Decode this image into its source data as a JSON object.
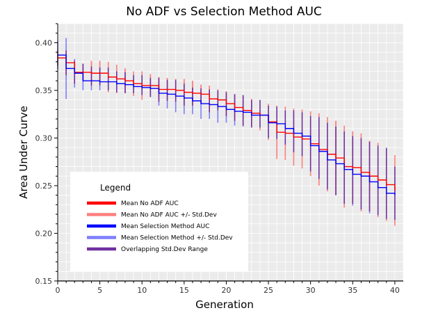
{
  "chart_data": {
    "type": "line",
    "title": "No ADF vs Selection Method AUC",
    "xlabel": "Generation",
    "ylabel": "Area Under Curve",
    "xlim": [
      0,
      41
    ],
    "ylim": [
      0.15,
      0.42
    ],
    "xticks": [
      0,
      5,
      10,
      15,
      20,
      25,
      30,
      35,
      40
    ],
    "yticks": [
      0.15,
      0.2,
      0.25,
      0.3,
      0.35,
      0.4
    ],
    "ytick_labels": [
      "0.15",
      "0.20",
      "0.25",
      "0.30",
      "0.35",
      "0.40"
    ],
    "grid": true,
    "background": "#ebebeb",
    "line_style": "step",
    "x": [
      0,
      1,
      2,
      3,
      4,
      5,
      6,
      7,
      8,
      9,
      10,
      11,
      12,
      13,
      14,
      15,
      16,
      17,
      18,
      19,
      20,
      21,
      22,
      23,
      24,
      25,
      26,
      27,
      28,
      29,
      30,
      31,
      32,
      33,
      34,
      35,
      36,
      37,
      38,
      39,
      40
    ],
    "series": [
      {
        "name": "Mean No ADF AUC",
        "color": "#ff0000",
        "values": [
          0.384,
          0.379,
          0.369,
          0.369,
          0.368,
          0.368,
          0.364,
          0.362,
          0.36,
          0.357,
          0.355,
          0.355,
          0.351,
          0.351,
          0.35,
          0.348,
          0.347,
          0.346,
          0.341,
          0.34,
          0.336,
          0.332,
          0.329,
          0.326,
          0.324,
          0.317,
          0.306,
          0.305,
          0.301,
          0.299,
          0.294,
          0.288,
          0.283,
          0.279,
          0.27,
          0.269,
          0.264,
          0.26,
          0.256,
          0.251,
          0.245
        ]
      },
      {
        "name": "Mean No ADF AUC +/- Std.Dev",
        "color": "#ff7f7f",
        "upper": [
          0.392,
          0.392,
          0.381,
          0.378,
          0.381,
          0.381,
          0.38,
          0.377,
          0.373,
          0.37,
          0.37,
          0.367,
          0.364,
          0.363,
          0.362,
          0.362,
          0.36,
          0.356,
          0.355,
          0.351,
          0.349,
          0.346,
          0.345,
          0.341,
          0.34,
          0.336,
          0.334,
          0.333,
          0.331,
          0.33,
          0.328,
          0.326,
          0.322,
          0.318,
          0.313,
          0.307,
          0.305,
          0.297,
          0.295,
          0.289,
          0.282
        ],
        "lower": [
          0.376,
          0.366,
          0.357,
          0.36,
          0.355,
          0.355,
          0.348,
          0.347,
          0.347,
          0.344,
          0.34,
          0.343,
          0.338,
          0.339,
          0.338,
          0.334,
          0.334,
          0.336,
          0.327,
          0.329,
          0.323,
          0.318,
          0.313,
          0.311,
          0.308,
          0.298,
          0.278,
          0.277,
          0.271,
          0.268,
          0.26,
          0.25,
          0.244,
          0.24,
          0.227,
          0.231,
          0.223,
          0.223,
          0.217,
          0.213,
          0.208
        ]
      },
      {
        "name": "Mean Selection Method AUC",
        "color": "#0000ff",
        "values": [
          0.387,
          0.373,
          0.368,
          0.36,
          0.36,
          0.359,
          0.359,
          0.357,
          0.356,
          0.354,
          0.353,
          0.352,
          0.347,
          0.346,
          0.344,
          0.342,
          0.339,
          0.336,
          0.335,
          0.333,
          0.33,
          0.328,
          0.327,
          0.324,
          0.324,
          0.316,
          0.315,
          0.31,
          0.305,
          0.302,
          0.292,
          0.286,
          0.277,
          0.273,
          0.267,
          0.262,
          0.26,
          0.254,
          0.248,
          0.242,
          0.24
        ]
      },
      {
        "name": "Mean Selection Method +/- Std.Dev",
        "color": "#7f7fff",
        "upper": [
          0.402,
          0.405,
          0.383,
          0.378,
          0.375,
          0.374,
          0.374,
          0.37,
          0.369,
          0.366,
          0.366,
          0.363,
          0.363,
          0.361,
          0.361,
          0.357,
          0.353,
          0.352,
          0.351,
          0.35,
          0.348,
          0.346,
          0.345,
          0.34,
          0.34,
          0.334,
          0.333,
          0.329,
          0.329,
          0.327,
          0.323,
          0.322,
          0.316,
          0.312,
          0.307,
          0.302,
          0.3,
          0.296,
          0.292,
          0.29,
          0.27
        ],
        "lower": [
          0.372,
          0.341,
          0.353,
          0.35,
          0.35,
          0.35,
          0.35,
          0.348,
          0.347,
          0.347,
          0.345,
          0.343,
          0.334,
          0.331,
          0.327,
          0.325,
          0.325,
          0.32,
          0.32,
          0.316,
          0.316,
          0.313,
          0.312,
          0.311,
          0.311,
          0.3,
          0.299,
          0.293,
          0.285,
          0.281,
          0.265,
          0.257,
          0.246,
          0.24,
          0.231,
          0.229,
          0.225,
          0.221,
          0.219,
          0.215,
          0.214
        ]
      }
    ],
    "overlap_color": "#7030a0",
    "legend": {
      "title": "Legend",
      "position": "bottom-left",
      "entries": [
        {
          "label": "Mean No ADF AUC",
          "color": "#ff0000"
        },
        {
          "label": "Mean No ADF AUC +/- Std.Dev",
          "color": "#ff7f7f"
        },
        {
          "label": "Mean Selection Method AUC",
          "color": "#0000ff"
        },
        {
          "label": "Mean Selection Method +/- Std.Dev",
          "color": "#7f7fff"
        },
        {
          "label": "Overlapping Std.Dev Range",
          "color": "#7030a0"
        }
      ]
    }
  }
}
